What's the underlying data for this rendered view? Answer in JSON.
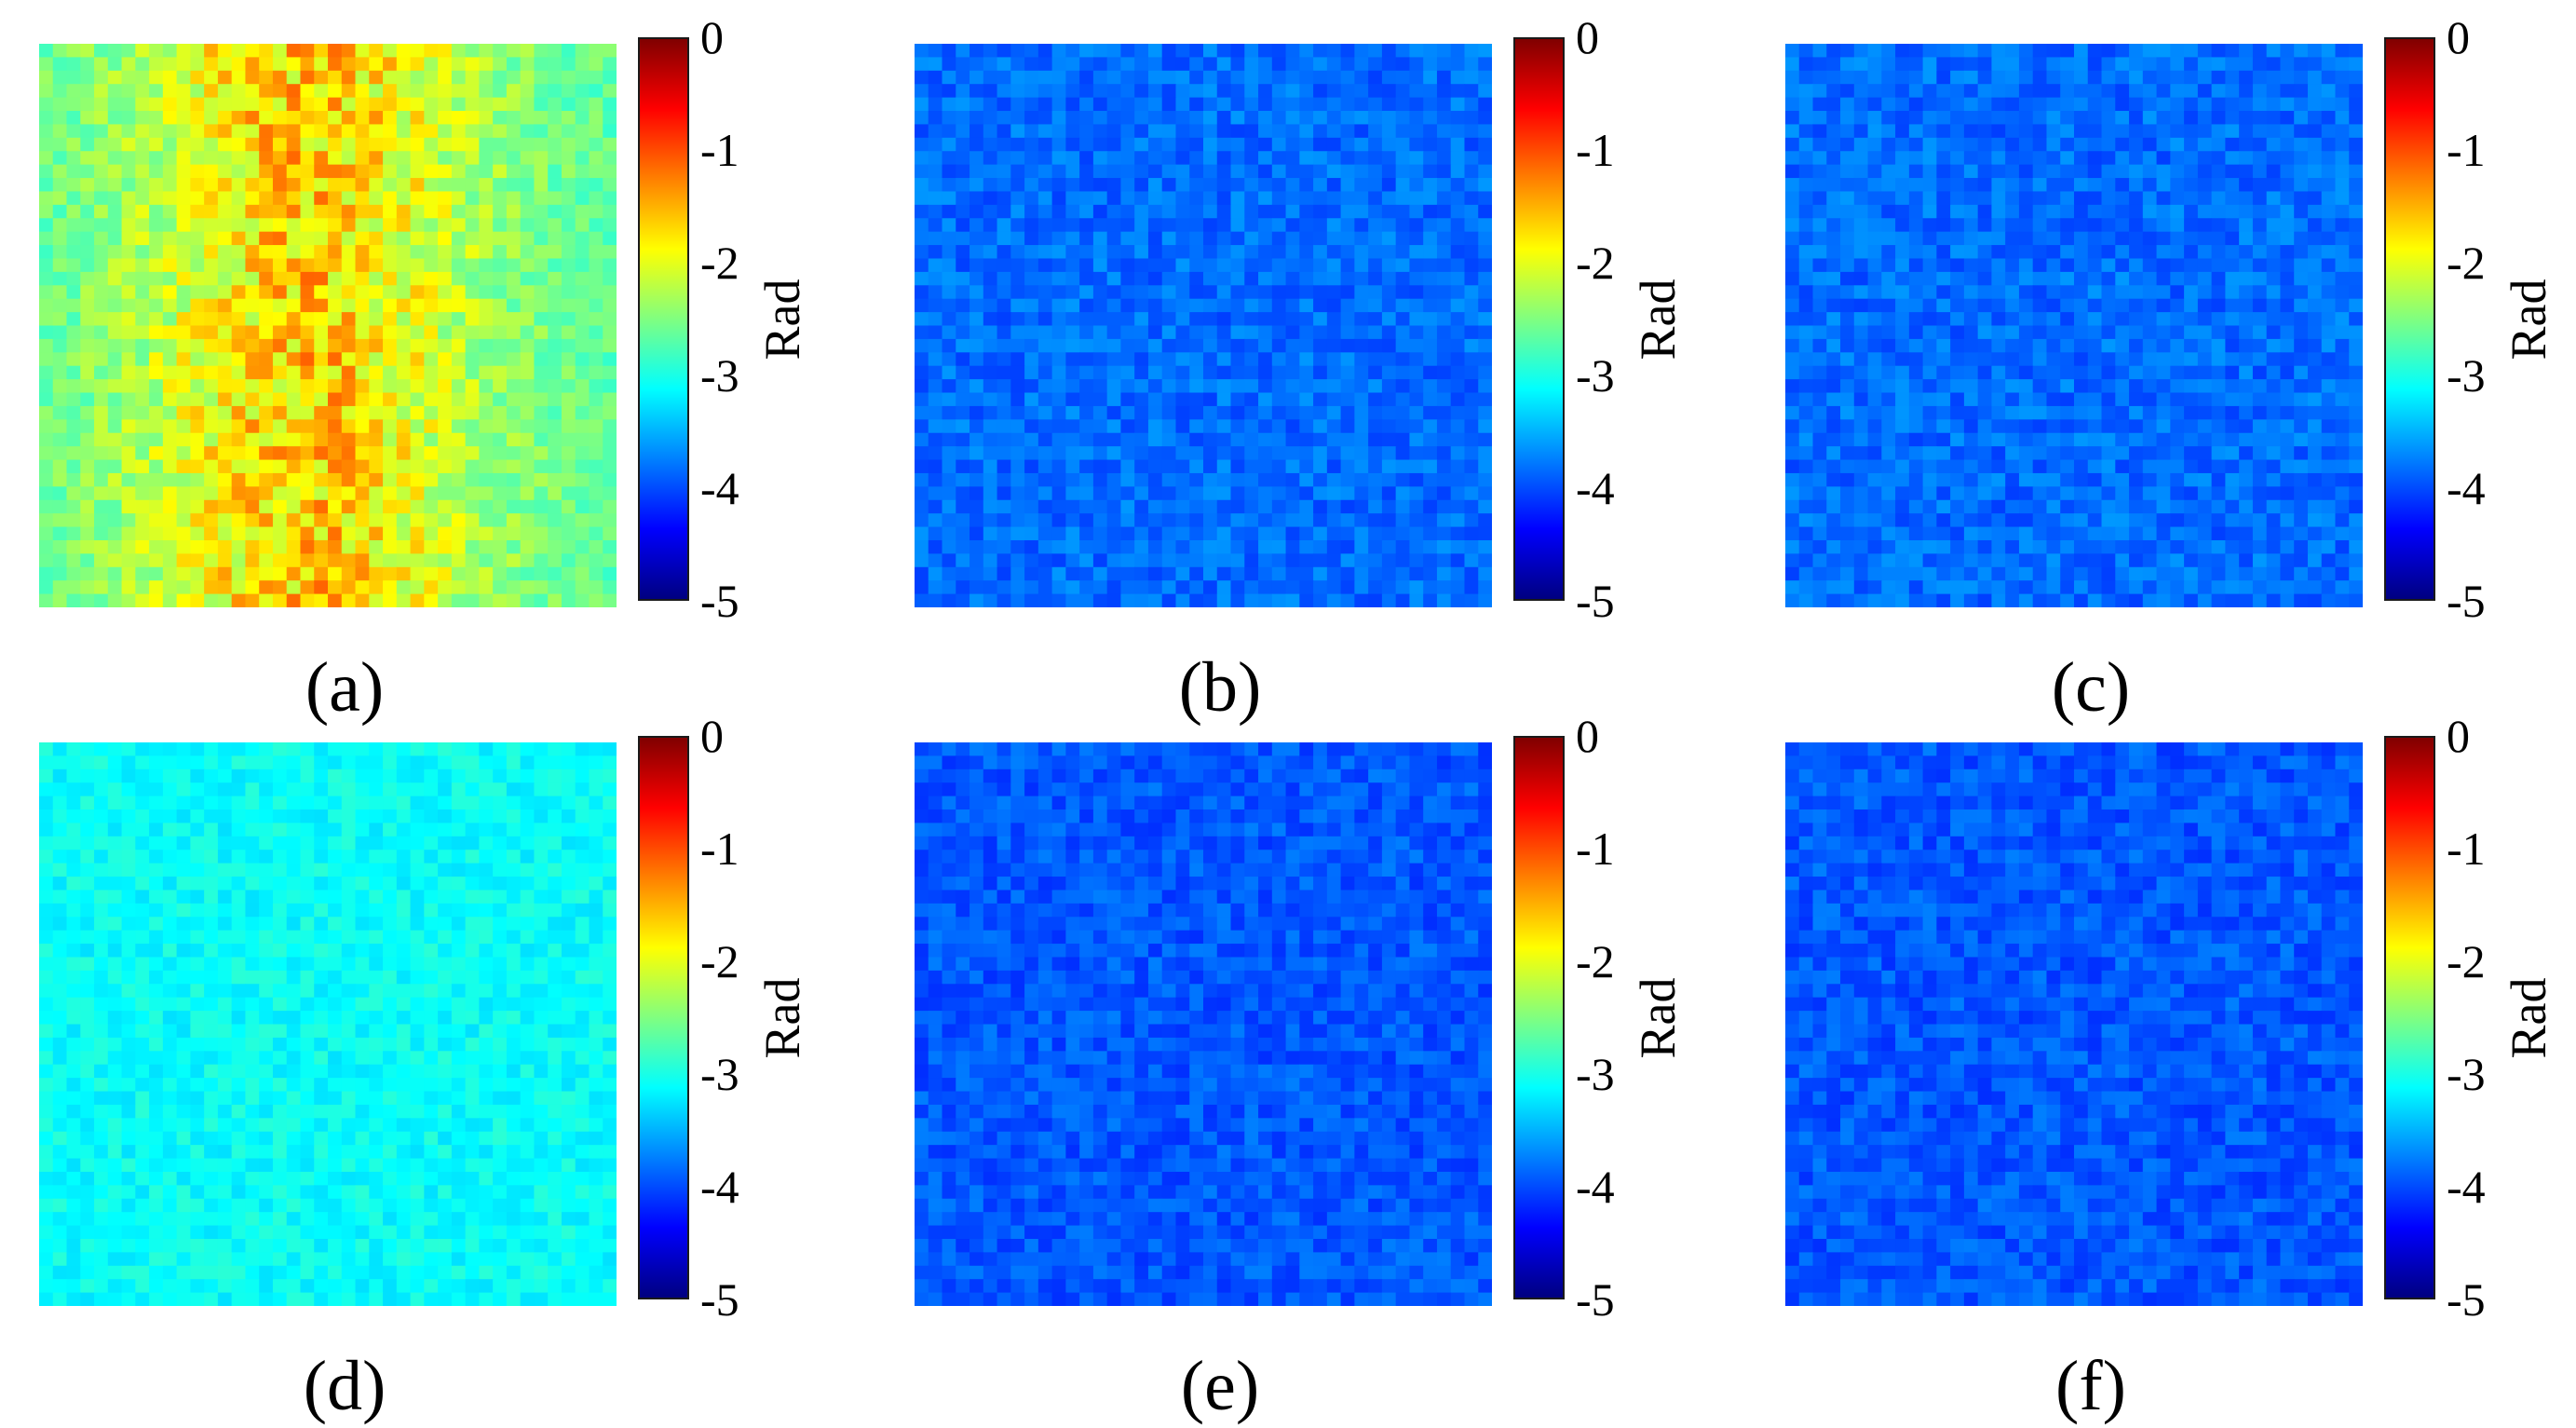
{
  "chart_data": [
    {
      "panel": "(a)",
      "type": "heatmap",
      "colormap": "jet",
      "colorbar_title": "Rad",
      "colorbar_ticks": [
        "0",
        "-1",
        "-2",
        "-3",
        "-4",
        "-5"
      ],
      "clim": [
        -5,
        0
      ],
      "grid": [
        42,
        42
      ],
      "pattern": "centered_band",
      "mean_value": -2.0,
      "edge_value": -2.7,
      "spread": 0.35
    },
    {
      "panel": "(b)",
      "type": "heatmap",
      "colormap": "jet",
      "colorbar_title": "Rad",
      "colorbar_ticks": [
        "0",
        "-1",
        "-2",
        "-3",
        "-4",
        "-5"
      ],
      "clim": [
        -5,
        0
      ],
      "grid": [
        42,
        42
      ],
      "pattern": "uniform_noise",
      "mean_value": -3.85,
      "spread": 0.22
    },
    {
      "panel": "(c)",
      "type": "heatmap",
      "colormap": "jet",
      "colorbar_title": "Rad",
      "colorbar_ticks": [
        "0",
        "-1",
        "-2",
        "-3",
        "-4",
        "-5"
      ],
      "clim": [
        -5,
        0
      ],
      "grid": [
        42,
        42
      ],
      "pattern": "uniform_noise",
      "mean_value": -3.85,
      "spread": 0.22
    },
    {
      "panel": "(d)",
      "type": "heatmap",
      "colormap": "jet",
      "colorbar_title": "Rad",
      "colorbar_ticks": [
        "0",
        "-1",
        "-2",
        "-3",
        "-4",
        "-5"
      ],
      "clim": [
        -5,
        0
      ],
      "grid": [
        42,
        42
      ],
      "pattern": "uniform_noise",
      "mean_value": -3.1,
      "spread": 0.18
    },
    {
      "panel": "(e)",
      "type": "heatmap",
      "colormap": "jet",
      "colorbar_title": "Rad",
      "colorbar_ticks": [
        "0",
        "-1",
        "-2",
        "-3",
        "-4",
        "-5"
      ],
      "clim": [
        -5,
        0
      ],
      "grid": [
        42,
        42
      ],
      "pattern": "uniform_noise",
      "mean_value": -3.95,
      "spread": 0.2
    },
    {
      "panel": "(f)",
      "type": "heatmap",
      "colormap": "jet",
      "colorbar_title": "Rad",
      "colorbar_ticks": [
        "0",
        "-1",
        "-2",
        "-3",
        "-4",
        "-5"
      ],
      "clim": [
        -5,
        0
      ],
      "grid": [
        42,
        42
      ],
      "pattern": "uniform_noise",
      "mean_value": -3.95,
      "spread": 0.2
    }
  ]
}
